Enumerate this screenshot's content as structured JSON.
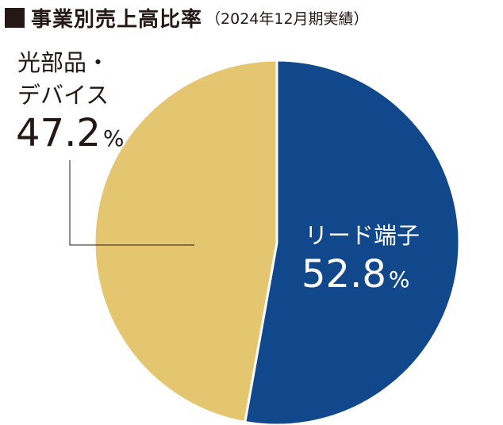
{
  "title": {
    "main": "事業別売上高比率",
    "sub": "（2024年12月期実績）"
  },
  "chart_data": {
    "type": "pie",
    "title": "事業別売上高比率（2024年12月期実績）",
    "unit": "%",
    "slices": [
      {
        "label": "リード端子",
        "value": 52.8,
        "value_text": "52.8",
        "color": "#11488c"
      },
      {
        "label_lines": [
          "光部品・",
          "デバイス"
        ],
        "label": "光部品・デバイス",
        "value": 47.2,
        "value_text": "47.2",
        "color": "#e4c671"
      }
    ],
    "start_angle_deg": 0,
    "direction": "clockwise",
    "border_color": "#ffffff"
  }
}
